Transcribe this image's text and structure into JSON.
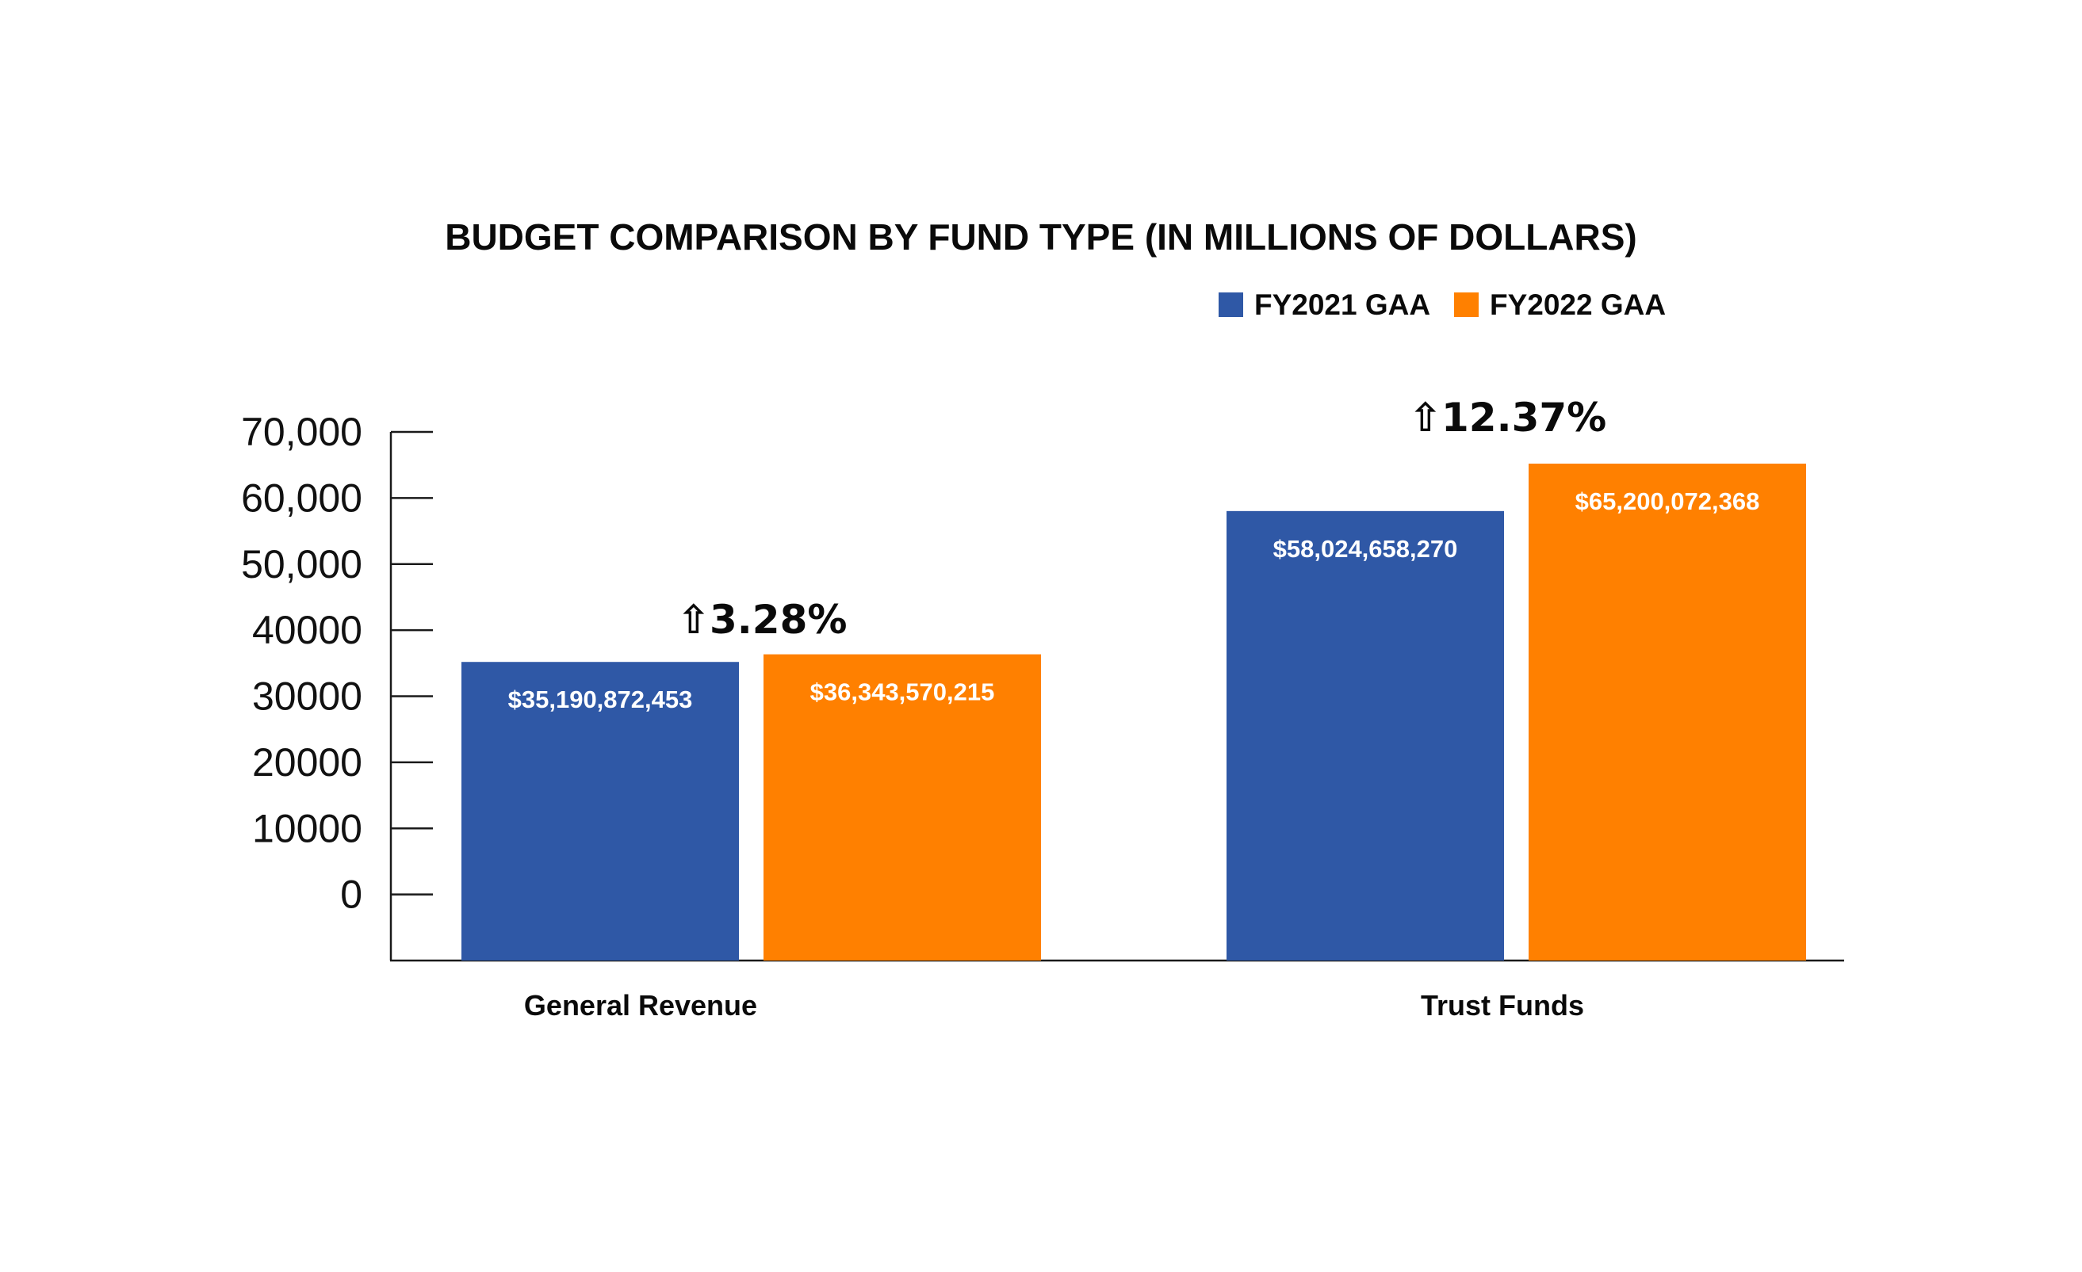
{
  "chart_data": {
    "type": "bar",
    "title": "BUDGET COMPARISON BY FUND TYPE (IN MILLIONS OF DOLLARS)",
    "xlabel": "",
    "ylabel": "",
    "categories": [
      "General Revenue",
      "Trust Funds"
    ],
    "series": [
      {
        "name": "FY2021 GAA",
        "color": "#2f58a6",
        "values": [
          35190.872453,
          58024.65827
        ],
        "labels": [
          "$35,190,872,453",
          "$58,024,658,270"
        ]
      },
      {
        "name": "FY2022 GAA",
        "color": "#ff8000",
        "values": [
          36343.570215,
          65200.072368
        ],
        "labels": [
          "$36,343,570,215",
          "$65,200,072,368"
        ]
      }
    ],
    "y_ticks": [
      {
        "value": 0,
        "label": "0"
      },
      {
        "value": 10000,
        "label": "10000"
      },
      {
        "value": 20000,
        "label": "20000"
      },
      {
        "value": 30000,
        "label": "30000"
      },
      {
        "value": 40000,
        "label": "40000"
      },
      {
        "value": 50000,
        "label": "50,000"
      },
      {
        "value": 60000,
        "label": "60,000"
      },
      {
        "value": 70000,
        "label": "70,000"
      }
    ],
    "ylim": [
      -10000,
      70000
    ],
    "annotations": [
      {
        "category": "General Revenue",
        "text": "3.28%",
        "arrow": "⇧"
      },
      {
        "category": "Trust Funds",
        "text": "12.37%",
        "arrow": "⇧"
      }
    ],
    "legend_position": "top-right",
    "grid": false
  }
}
